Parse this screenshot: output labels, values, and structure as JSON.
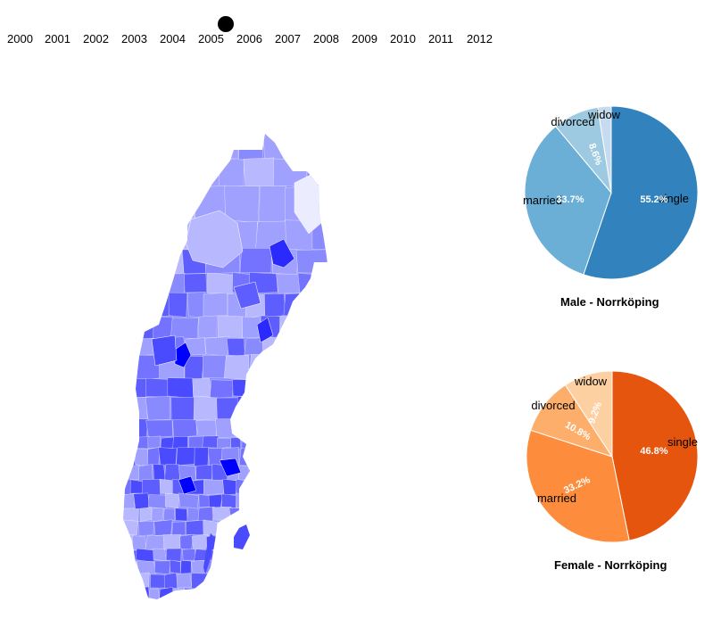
{
  "timeline": {
    "years": [
      "2000",
      "2001",
      "2002",
      "2003",
      "2004",
      "2005",
      "2006",
      "2007",
      "2008",
      "2009",
      "2010",
      "2011",
      "2012"
    ],
    "selected": "2005"
  },
  "map": {
    "colors": [
      "#0000ff",
      "#2a2aff",
      "#4a4aff",
      "#5e5eff",
      "#7373ff",
      "#8a8aff",
      "#a0a0ff",
      "#b8b8ff",
      "#ececff"
    ]
  },
  "chart_data": [
    {
      "type": "pie",
      "title": "Male - Norrköping",
      "categories": [
        "single",
        "married",
        "divorced",
        "widow"
      ],
      "values": [
        55.2,
        33.7,
        8.6,
        2.5
      ],
      "value_labels": [
        "55.2%",
        "33.7%",
        "8.6%",
        ""
      ],
      "colors": [
        "#3182bd",
        "#6baed6",
        "#9ecae1",
        "#c6dbef"
      ]
    },
    {
      "type": "pie",
      "title": "Female - Norrköping",
      "categories": [
        "single",
        "married",
        "divorced",
        "widow"
      ],
      "values": [
        46.8,
        33.2,
        10.8,
        9.2
      ],
      "value_labels": [
        "46.8%",
        "33.2%",
        "10.8%",
        "9.2%"
      ],
      "colors": [
        "#e6550d",
        "#fd8d3c",
        "#fdae6b",
        "#fdd0a2"
      ]
    }
  ]
}
